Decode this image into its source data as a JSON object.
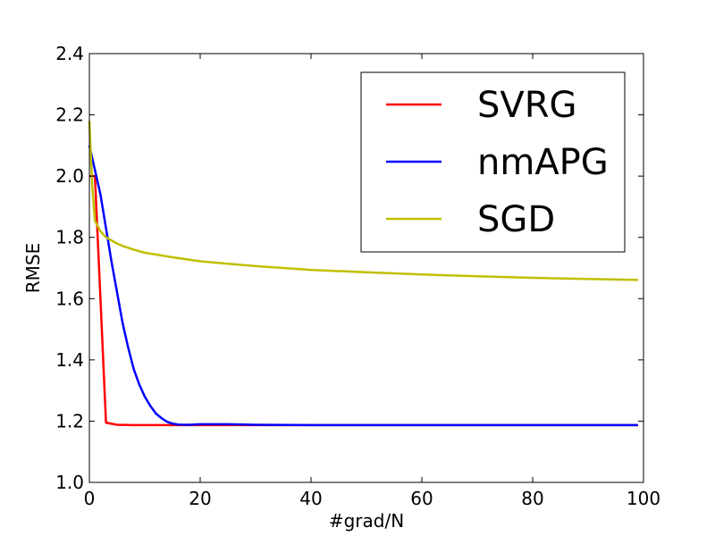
{
  "chart_data": {
    "type": "line",
    "title": "",
    "xlabel": "#grad/N",
    "ylabel": "RMSE",
    "xlim": [
      0,
      100
    ],
    "ylim": [
      1.0,
      2.4
    ],
    "grid": false,
    "legend_position": "top-right",
    "x_ticks": [
      0,
      20,
      40,
      60,
      80,
      100
    ],
    "x_tick_labels": [
      "0",
      "20",
      "40",
      "60",
      "80",
      "100"
    ],
    "y_ticks": [
      1.0,
      1.2,
      1.4,
      1.6,
      1.8,
      2.0,
      2.2,
      2.4
    ],
    "y_tick_labels": [
      "1.0",
      "1.2",
      "1.4",
      "1.6",
      "1.8",
      "2.0",
      "2.2",
      "2.4"
    ],
    "series": [
      {
        "name": "SVRG",
        "color": "#ff0000",
        "x": [
          0,
          1,
          2,
          3,
          5,
          8,
          10,
          20,
          40,
          60,
          80,
          99
        ],
        "y": [
          2.0,
          2.0,
          1.6,
          1.195,
          1.188,
          1.187,
          1.187,
          1.187,
          1.187,
          1.187,
          1.187,
          1.187
        ]
      },
      {
        "name": "nmAPG",
        "color": "#0000ff",
        "x": [
          0,
          1,
          2,
          3,
          4,
          5,
          6,
          7,
          8,
          9,
          10,
          11,
          12,
          13,
          14,
          15,
          16,
          17,
          18,
          20,
          25,
          30,
          40,
          60,
          80,
          99
        ],
        "y": [
          2.1,
          2.02,
          1.94,
          1.83,
          1.72,
          1.62,
          1.52,
          1.44,
          1.37,
          1.32,
          1.28,
          1.25,
          1.225,
          1.21,
          1.198,
          1.192,
          1.189,
          1.188,
          1.188,
          1.19,
          1.19,
          1.188,
          1.187,
          1.187,
          1.187,
          1.187
        ]
      },
      {
        "name": "SGD",
        "color": "#bfbf00",
        "x": [
          0,
          0.5,
          1,
          2,
          3,
          4,
          5,
          6,
          8,
          10,
          15,
          20,
          30,
          40,
          50,
          60,
          70,
          80,
          90,
          99
        ],
        "y": [
          2.18,
          1.97,
          1.855,
          1.82,
          1.8,
          1.79,
          1.78,
          1.772,
          1.76,
          1.75,
          1.735,
          1.722,
          1.706,
          1.694,
          1.686,
          1.679,
          1.673,
          1.668,
          1.664,
          1.661
        ]
      }
    ]
  }
}
